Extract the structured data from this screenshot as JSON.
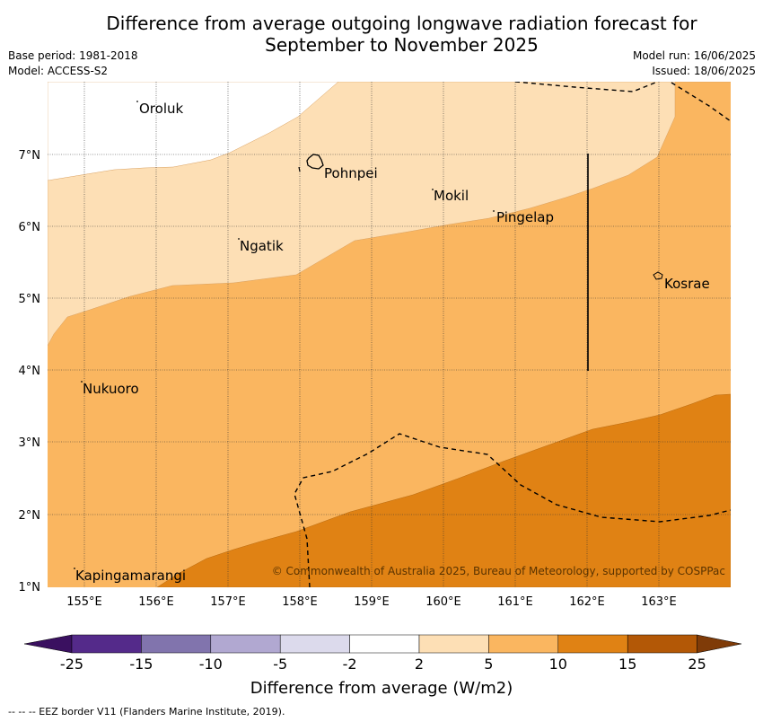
{
  "title_line1": "Difference from average outgoing longwave radiation forecast for",
  "title_line2": "September to November 2025",
  "meta_left": {
    "base_period": "Base period: 1981-2018",
    "model": "Model: ACCESS-S2"
  },
  "meta_right": {
    "model_run": "Model run: 16/06/2025",
    "issued": "Issued: 18/06/2025"
  },
  "x_ticks": [
    "155°E",
    "156°E",
    "157°E",
    "158°E",
    "159°E",
    "160°E",
    "161°E",
    "162°E",
    "163°E"
  ],
  "y_ticks": [
    "1°N",
    "2°N",
    "3°N",
    "4°N",
    "5°N",
    "6°N",
    "7°N"
  ],
  "places": [
    {
      "name": "Oroluk"
    },
    {
      "name": "Pohnpei"
    },
    {
      "name": "Mokil"
    },
    {
      "name": "Pingelap"
    },
    {
      "name": "Ngatik"
    },
    {
      "name": "Kosrae"
    },
    {
      "name": "Nukuoro"
    },
    {
      "name": "Kapingamarangi"
    }
  ],
  "copyright": "© Commonwealth of Australia 2025, Bureau of Meteorology, supported by COSPPac",
  "colorbar": {
    "ticks": [
      "-25",
      "-15",
      "-10",
      "-5",
      "-2",
      "2",
      "5",
      "10",
      "15",
      "25"
    ],
    "colors": [
      "#3a1060",
      "#542a8a",
      "#8174ad",
      "#b1a8d1",
      "#dcdaec",
      "#ffffff",
      "#fddfb5",
      "#fab660",
      "#e08214",
      "#b35806",
      "#7f3b08"
    ],
    "label": "Difference from average (W/m2)"
  },
  "footer": "-- --  -- EEZ border V11 (Flanders Marine Institute, 2019).",
  "legend_colors": {
    "white": "#ffffff",
    "light": "#fddfb5",
    "mid": "#fab660",
    "dark": "#e08214"
  }
}
